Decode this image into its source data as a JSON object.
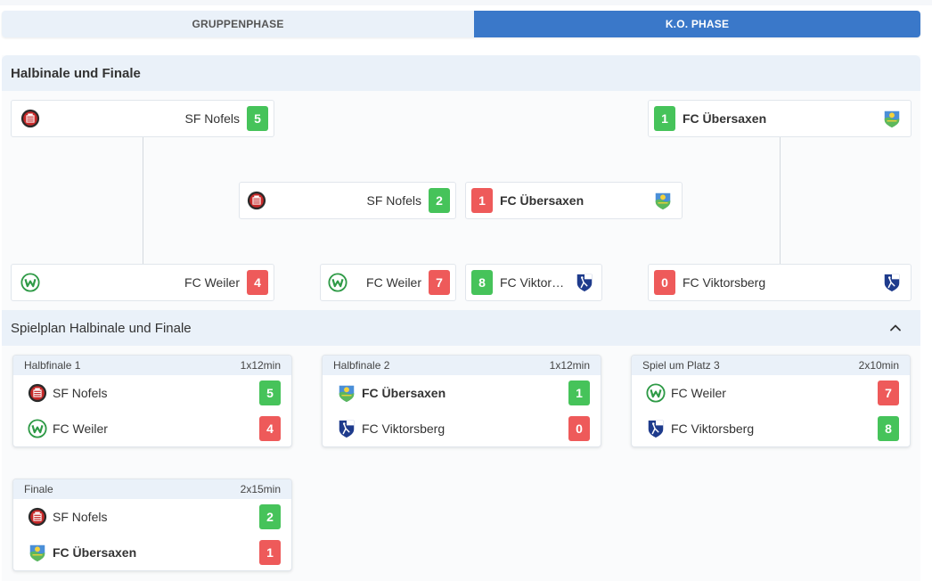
{
  "tabs": [
    {
      "label": "GRUPPENPHASE",
      "active": false
    },
    {
      "label": "K.O. PHASE",
      "active": true
    }
  ],
  "bracket_section": {
    "title": "Halbinale und Finale",
    "left_top": {
      "team": "SF Nofels",
      "score": "5",
      "result": "win",
      "logo": "nofels-logo"
    },
    "left_bottom": {
      "team": "FC Weiler",
      "score": "4",
      "result": "loss",
      "logo": "weiler-logo"
    },
    "right_top": {
      "team": "FC Übersaxen",
      "score": "1",
      "result": "win",
      "logo": "uebersaxen-logo"
    },
    "right_bottom": {
      "team": "FC Viktorsberg",
      "score": "0",
      "result": "loss",
      "logo": "viktorsberg-logo"
    },
    "final": {
      "left": {
        "team": "SF Nofels",
        "score": "2",
        "result": "win"
      },
      "right": {
        "team": "FC Übersaxen",
        "score": "1",
        "result": "loss"
      }
    },
    "third_place": {
      "left": {
        "team": "FC Weiler",
        "score": "7",
        "result": "loss"
      },
      "right": {
        "team": "FC Viktor…",
        "score": "8",
        "result": "win"
      }
    }
  },
  "schedule_section": {
    "title": "Spielplan Halbinale und Finale",
    "collapse_icon": "chevron-up-icon",
    "matches": [
      {
        "title": "Halbfinale 1",
        "duration": "1x12min",
        "home": {
          "team": "SF Nofels",
          "score": "5",
          "result": "win"
        },
        "away": {
          "team": "FC Weiler",
          "score": "4",
          "result": "loss"
        }
      },
      {
        "title": "Halbfinale 2",
        "duration": "1x12min",
        "home": {
          "team": "FC Übersaxen",
          "score": "1",
          "result": "win"
        },
        "away": {
          "team": "FC Viktorsberg",
          "score": "0",
          "result": "loss"
        }
      },
      {
        "title": "Spiel um Platz 3",
        "duration": "2x10min",
        "home": {
          "team": "FC Weiler",
          "score": "7",
          "result": "loss"
        },
        "away": {
          "team": "FC Viktorsberg",
          "score": "8",
          "result": "win"
        }
      },
      {
        "title": "Finale",
        "duration": "2x15min",
        "home": {
          "team": "SF Nofels",
          "score": "2",
          "result": "win"
        },
        "away": {
          "team": "FC Übersaxen",
          "score": "1",
          "result": "loss"
        }
      }
    ]
  },
  "colors": {
    "win": "#46c35a",
    "loss": "#ee5a5a",
    "accent": "#3a78c9",
    "header_bg": "#eaf1f9"
  }
}
